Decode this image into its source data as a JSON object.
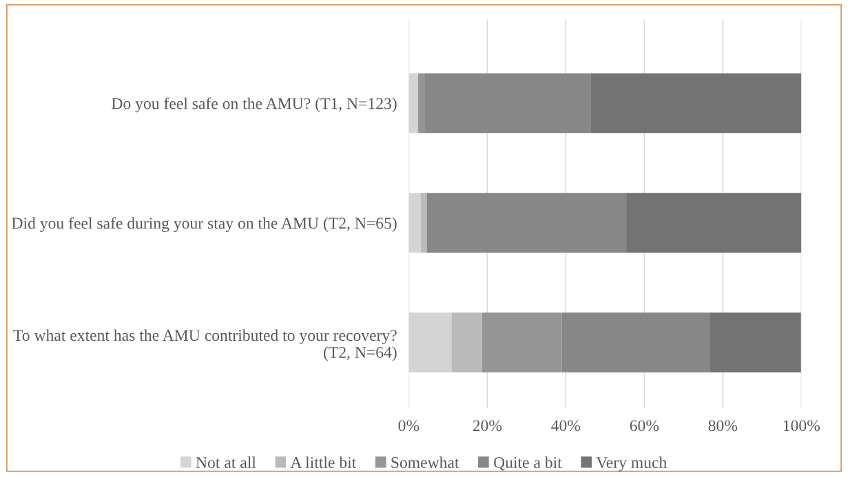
{
  "chart_data": {
    "type": "bar",
    "orientation": "horizontal",
    "stacked": true,
    "categories": [
      "Do you feel safe on the AMU? (T1, N=123)",
      "Did you feel safe during your stay on the AMU (T2, N=65)",
      "To what extent has the AMU contributed to your recovery? (T2, N=64)"
    ],
    "series": [
      {
        "name": "Not at all",
        "color": "#d4d4d4",
        "values": [
          2.4,
          3.1,
          10.9
        ]
      },
      {
        "name": "A little bit",
        "color": "#bababa",
        "values": [
          0,
          1.5,
          7.8
        ]
      },
      {
        "name": "Somewhat",
        "color": "#959595",
        "values": [
          1.6,
          0,
          20.3
        ]
      },
      {
        "name": "Quite a bit",
        "color": "#878787",
        "values": [
          42.3,
          50.8,
          37.5
        ]
      },
      {
        "name": "Very much",
        "color": "#737373",
        "values": [
          53.7,
          44.6,
          23.4
        ]
      }
    ],
    "xlim": [
      0,
      100
    ],
    "xticks": [
      {
        "value": 0,
        "label": "0%"
      },
      {
        "value": 20,
        "label": "20%"
      },
      {
        "value": 40,
        "label": "40%"
      },
      {
        "value": 60,
        "label": "60%"
      },
      {
        "value": 80,
        "label": "80%"
      },
      {
        "value": 100,
        "label": "100%"
      }
    ],
    "grid": "x",
    "legend": "bottom"
  }
}
